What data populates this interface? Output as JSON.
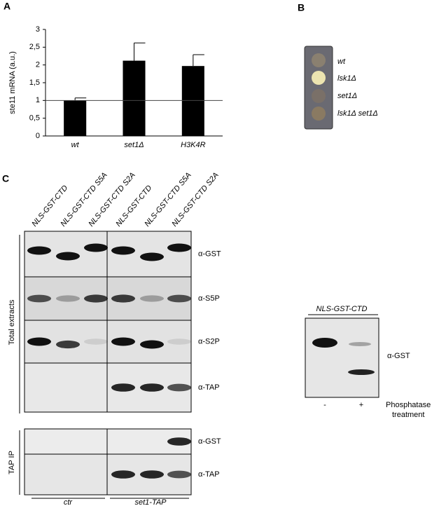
{
  "chart_data": {
    "type": "bar",
    "ylabel": "ste11 mRNA (a.u.)",
    "categories": [
      "wt",
      "set1Δ",
      "H3K4R"
    ],
    "values": [
      1.0,
      2.12,
      1.97
    ],
    "errors": [
      0.07,
      0.5,
      0.32
    ],
    "reference_line": 1,
    "color": "#000000",
    "ylim": [
      0,
      3
    ],
    "yticks": [
      0,
      {
        "value": 0.5,
        "label": "0,5"
      },
      1,
      {
        "value": 1.5,
        "label": "1,5"
      },
      2,
      {
        "value": 2.5,
        "label": "2,5"
      },
      3
    ]
  },
  "panel_labels": [
    "A",
    "B",
    "C"
  ],
  "panel_b": {
    "strains": [
      "wt",
      "lsk1Δ",
      "set1Δ",
      "lsk1Δ set1Δ"
    ]
  },
  "panel_c": {
    "lanes": [
      "NLS-GST-CTD",
      "NLS-GST-CTD S5A",
      "NLS-GST-CTD S2A",
      "NLS-GST-CTD",
      "NLS-GST-CTD S5A",
      "NLS-GST-CTD S2A"
    ],
    "antibodies": [
      "α-GST",
      "α-S5P",
      "α-S2P",
      "α-TAP",
      "α-GST",
      "α-TAP"
    ],
    "groups": [
      "Total extracts",
      "TAP IP"
    ],
    "strains": [
      "ctr",
      "set1-TAP"
    ],
    "inset": {
      "lane_header": "NLS-GST-CTD",
      "antibody": "α-GST",
      "treatments": [
        "-",
        "+"
      ],
      "treatment_label": [
        "Phosphatase",
        "treatment"
      ]
    }
  }
}
